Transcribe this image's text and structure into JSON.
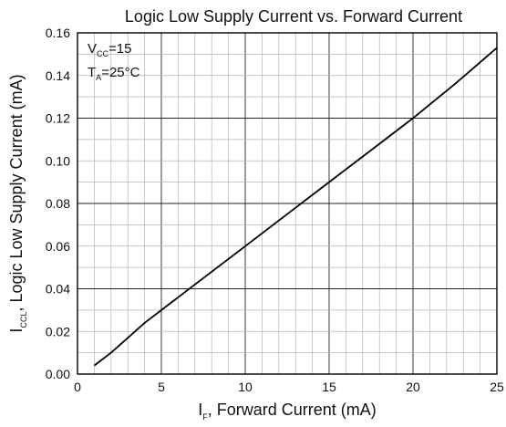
{
  "chart_data": {
    "type": "line",
    "title": "Logic Low Supply Current vs. Forward Current",
    "xlabel": {
      "main": "I",
      "sub": "F",
      "rest": ", Forward Current (mA)"
    },
    "ylabel": {
      "main": "I",
      "sub": "CCL",
      "rest": ", Logic Low Supply Current (mA)"
    },
    "xlim": [
      0,
      25
    ],
    "ylim": [
      0,
      0.16
    ],
    "x_ticks": [
      "0",
      "5",
      "10",
      "15",
      "20",
      "25"
    ],
    "y_ticks": [
      "0.00",
      "0.02",
      "0.04",
      "0.06",
      "0.08",
      "0.10",
      "0.12",
      "0.14",
      "0.16"
    ],
    "grid": true,
    "annotations": {
      "vcc": {
        "main": "V",
        "sub": "CC",
        "rest": "=15"
      },
      "ta": {
        "main": "T",
        "sub": "A",
        "rest": "=25°C"
      }
    },
    "series": [
      {
        "x": [
          1,
          1.5,
          2,
          3,
          4,
          5,
          7,
          10,
          12.5,
          15,
          17.5,
          20,
          22.5,
          25
        ],
        "y": [
          0.004,
          0.007,
          0.01,
          0.017,
          0.024,
          0.03,
          0.042,
          0.06,
          0.075,
          0.09,
          0.105,
          0.12,
          0.136,
          0.153
        ]
      }
    ]
  }
}
